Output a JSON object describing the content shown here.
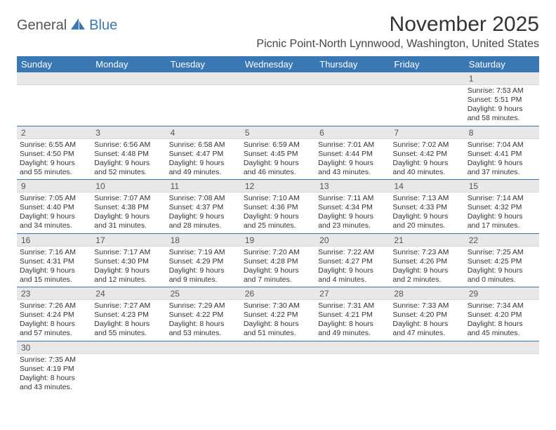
{
  "logo": {
    "part1": "General",
    "part2": "Blue"
  },
  "title": "November 2025",
  "location": "Picnic Point-North Lynnwood, Washington, United States",
  "colors": {
    "header_bg": "#3a78b5",
    "header_text": "#ffffff",
    "daynum_bg": "#e8e8e8",
    "cell_border": "#3a78b5",
    "body_text": "#333333"
  },
  "day_names": [
    "Sunday",
    "Monday",
    "Tuesday",
    "Wednesday",
    "Thursday",
    "Friday",
    "Saturday"
  ],
  "weeks": [
    [
      null,
      null,
      null,
      null,
      null,
      null,
      {
        "n": "1",
        "sunrise": "7:53 AM",
        "sunset": "5:51 PM",
        "daylight": "9 hours and 58 minutes."
      }
    ],
    [
      {
        "n": "2",
        "sunrise": "6:55 AM",
        "sunset": "4:50 PM",
        "daylight": "9 hours and 55 minutes."
      },
      {
        "n": "3",
        "sunrise": "6:56 AM",
        "sunset": "4:48 PM",
        "daylight": "9 hours and 52 minutes."
      },
      {
        "n": "4",
        "sunrise": "6:58 AM",
        "sunset": "4:47 PM",
        "daylight": "9 hours and 49 minutes."
      },
      {
        "n": "5",
        "sunrise": "6:59 AM",
        "sunset": "4:45 PM",
        "daylight": "9 hours and 46 minutes."
      },
      {
        "n": "6",
        "sunrise": "7:01 AM",
        "sunset": "4:44 PM",
        "daylight": "9 hours and 43 minutes."
      },
      {
        "n": "7",
        "sunrise": "7:02 AM",
        "sunset": "4:42 PM",
        "daylight": "9 hours and 40 minutes."
      },
      {
        "n": "8",
        "sunrise": "7:04 AM",
        "sunset": "4:41 PM",
        "daylight": "9 hours and 37 minutes."
      }
    ],
    [
      {
        "n": "9",
        "sunrise": "7:05 AM",
        "sunset": "4:40 PM",
        "daylight": "9 hours and 34 minutes."
      },
      {
        "n": "10",
        "sunrise": "7:07 AM",
        "sunset": "4:38 PM",
        "daylight": "9 hours and 31 minutes."
      },
      {
        "n": "11",
        "sunrise": "7:08 AM",
        "sunset": "4:37 PM",
        "daylight": "9 hours and 28 minutes."
      },
      {
        "n": "12",
        "sunrise": "7:10 AM",
        "sunset": "4:36 PM",
        "daylight": "9 hours and 25 minutes."
      },
      {
        "n": "13",
        "sunrise": "7:11 AM",
        "sunset": "4:34 PM",
        "daylight": "9 hours and 23 minutes."
      },
      {
        "n": "14",
        "sunrise": "7:13 AM",
        "sunset": "4:33 PM",
        "daylight": "9 hours and 20 minutes."
      },
      {
        "n": "15",
        "sunrise": "7:14 AM",
        "sunset": "4:32 PM",
        "daylight": "9 hours and 17 minutes."
      }
    ],
    [
      {
        "n": "16",
        "sunrise": "7:16 AM",
        "sunset": "4:31 PM",
        "daylight": "9 hours and 15 minutes."
      },
      {
        "n": "17",
        "sunrise": "7:17 AM",
        "sunset": "4:30 PM",
        "daylight": "9 hours and 12 minutes."
      },
      {
        "n": "18",
        "sunrise": "7:19 AM",
        "sunset": "4:29 PM",
        "daylight": "9 hours and 9 minutes."
      },
      {
        "n": "19",
        "sunrise": "7:20 AM",
        "sunset": "4:28 PM",
        "daylight": "9 hours and 7 minutes."
      },
      {
        "n": "20",
        "sunrise": "7:22 AM",
        "sunset": "4:27 PM",
        "daylight": "9 hours and 4 minutes."
      },
      {
        "n": "21",
        "sunrise": "7:23 AM",
        "sunset": "4:26 PM",
        "daylight": "9 hours and 2 minutes."
      },
      {
        "n": "22",
        "sunrise": "7:25 AM",
        "sunset": "4:25 PM",
        "daylight": "9 hours and 0 minutes."
      }
    ],
    [
      {
        "n": "23",
        "sunrise": "7:26 AM",
        "sunset": "4:24 PM",
        "daylight": "8 hours and 57 minutes."
      },
      {
        "n": "24",
        "sunrise": "7:27 AM",
        "sunset": "4:23 PM",
        "daylight": "8 hours and 55 minutes."
      },
      {
        "n": "25",
        "sunrise": "7:29 AM",
        "sunset": "4:22 PM",
        "daylight": "8 hours and 53 minutes."
      },
      {
        "n": "26",
        "sunrise": "7:30 AM",
        "sunset": "4:22 PM",
        "daylight": "8 hours and 51 minutes."
      },
      {
        "n": "27",
        "sunrise": "7:31 AM",
        "sunset": "4:21 PM",
        "daylight": "8 hours and 49 minutes."
      },
      {
        "n": "28",
        "sunrise": "7:33 AM",
        "sunset": "4:20 PM",
        "daylight": "8 hours and 47 minutes."
      },
      {
        "n": "29",
        "sunrise": "7:34 AM",
        "sunset": "4:20 PM",
        "daylight": "8 hours and 45 minutes."
      }
    ],
    [
      {
        "n": "30",
        "sunrise": "7:35 AM",
        "sunset": "4:19 PM",
        "daylight": "8 hours and 43 minutes."
      },
      null,
      null,
      null,
      null,
      null,
      null
    ]
  ],
  "labels": {
    "sunrise": "Sunrise:",
    "sunset": "Sunset:",
    "daylight": "Daylight:"
  }
}
